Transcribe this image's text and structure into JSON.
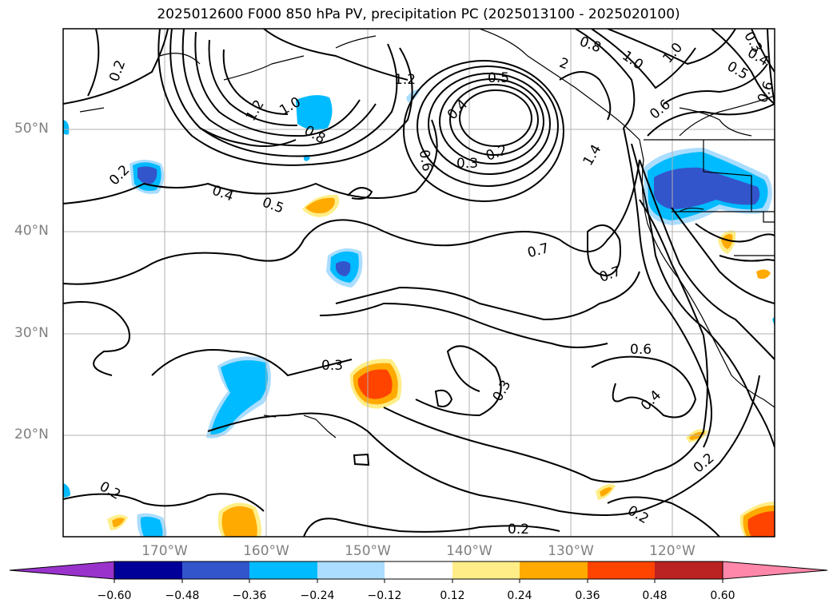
{
  "title": "2025012600 F000 850 hPa PV, precipitation PC (2025013100 - 2025020100)",
  "map": {
    "lat_labels": [
      "50°N",
      "40°N",
      "30°N",
      "20°N"
    ],
    "lon_labels": [
      "170°W",
      "160°W",
      "150°W",
      "140°W",
      "130°W",
      "120°W"
    ],
    "contour_labels": [
      "0.2",
      "1.2",
      "1.2",
      "1.0",
      "0.8",
      "0.2",
      "0.4",
      "0.5",
      "0.5",
      "0.4",
      "0.6",
      "0.3",
      "0.2",
      "0.8",
      "1.0",
      "1.0",
      "0.6",
      "1.4",
      "0.7",
      "0.7",
      "0.3",
      "0.3",
      "0.6",
      "0.4",
      "0.2",
      "0.2",
      "0.2",
      "0.2",
      "0.5",
      "0.6",
      "0.4",
      "0.3",
      "2"
    ]
  },
  "colorbar": {
    "tick_labels": [
      "−0.60",
      "−0.48",
      "−0.36",
      "−0.24",
      "−0.12",
      "0.12",
      "0.24",
      "0.36",
      "0.48",
      "0.60"
    ],
    "colors": [
      "#9933cc",
      "#000099",
      "#3355cc",
      "#00bbff",
      "#aaddff",
      "#ffffff",
      "#ffee88",
      "#ffaa00",
      "#ff4400",
      "#bb2222",
      "#ff88aa"
    ]
  }
}
